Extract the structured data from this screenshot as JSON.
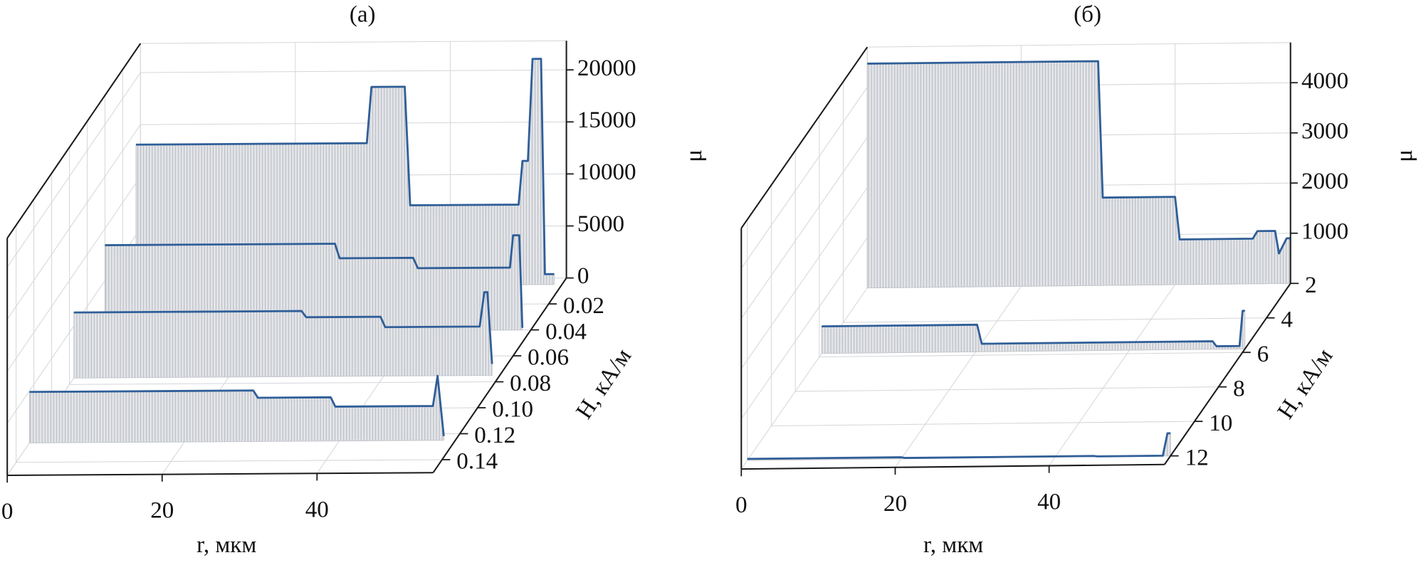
{
  "chart_data": [
    {
      "type": "waterfall3d",
      "title": "(а)",
      "x_label": "r, мкм",
      "y_label": "H, кА/м",
      "z_label": "μ",
      "xlim": [
        0,
        55
      ],
      "xticks": [
        0,
        20,
        40
      ],
      "ylim": [
        0,
        0.15
      ],
      "yticks": [
        0.02,
        0.04,
        0.06,
        0.08,
        {
          "value": 0.1,
          "label": "0.10"
        },
        0.12,
        0.14
      ],
      "zlim": [
        0,
        22800
      ],
      "zticks": [
        0,
        5000,
        10000,
        15000,
        20000
      ],
      "grid": true,
      "color": "#2f5e98",
      "series": [
        {
          "h": 0.005,
          "x": [
            0,
            29.8,
            30.4,
            34.7,
            35.4,
            49.4,
            49.9,
            50.6,
            51.2,
            52.3,
            52.8,
            54
          ],
          "values": [
            13700,
            13700,
            19100,
            19100,
            7700,
            7700,
            11900,
            11900,
            21700,
            21700,
            1000,
            1000
          ]
        },
        {
          "h": 0.04,
          "x": [
            0,
            29.7,
            30.3,
            39.8,
            40.4,
            52.3,
            52.7,
            53.5,
            53.9
          ],
          "values": [
            8400,
            8400,
            7000,
            7000,
            6000,
            6000,
            9100,
            9100,
            200
          ]
        },
        {
          "h": 0.075,
          "x": [
            0,
            29.4,
            30,
            39.6,
            40.2,
            52.4,
            53,
            53.4,
            54
          ],
          "values": [
            6300,
            6300,
            5700,
            5700,
            4700,
            4700,
            8000,
            8000,
            1100
          ]
        },
        {
          "h": 0.125,
          "x": [
            0,
            28.9,
            29.5,
            38.9,
            39.5,
            52.1,
            52.7,
            53.5
          ],
          "values": [
            4900,
            4900,
            4200,
            4200,
            3300,
            3300,
            6200,
            400
          ]
        }
      ]
    },
    {
      "type": "waterfall3d",
      "title": "(б)",
      "x_label": "r, мкм",
      "y_label": "H, кА/м",
      "z_label": "μ",
      "xlim": [
        0,
        55
      ],
      "xticks": [
        0,
        20,
        40
      ],
      "ylim": [
        2,
        12.5
      ],
      "yticks": [
        2,
        4,
        6,
        8,
        10,
        12
      ],
      "zlim": [
        0,
        4800
      ],
      "zticks": [
        1000,
        2000,
        3000,
        4000
      ],
      "grid": true,
      "color": "#2f5e98",
      "series": [
        {
          "h": 2,
          "x": [
            0,
            30,
            30.6,
            40,
            40.6,
            50.1,
            50.7,
            53,
            53.5,
            54.5,
            55
          ],
          "values": [
            4470,
            4470,
            1750,
            1750,
            900,
            900,
            1050,
            1050,
            600,
            900,
            900
          ]
        },
        {
          "h": 5.8,
          "x": [
            0,
            20.2,
            20.8,
            50.8,
            51.3,
            54.3,
            54.7,
            55
          ],
          "values": [
            540,
            540,
            160,
            160,
            60,
            60,
            760,
            760
          ]
        },
        {
          "h": 12,
          "x": [
            0,
            20,
            20.5,
            45,
            45.5,
            54,
            54.6,
            55
          ],
          "values": [
            30,
            30,
            15,
            15,
            5,
            5,
            450,
            450
          ]
        }
      ]
    }
  ]
}
